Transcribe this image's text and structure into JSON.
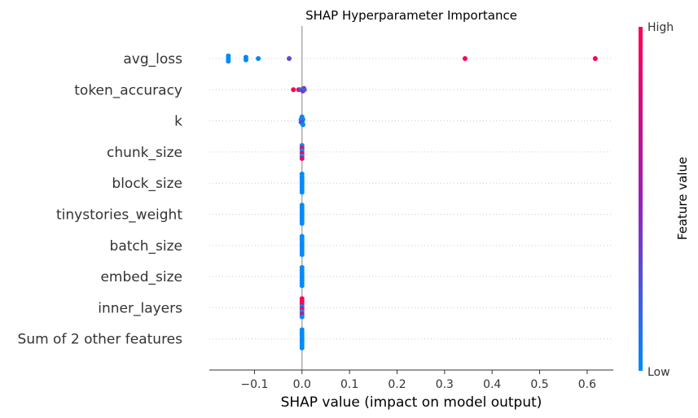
{
  "chart_data": {
    "type": "scatter",
    "title": "SHAP Hyperparameter Importance",
    "xlabel": "SHAP value (impact on model output)",
    "xlim": [
      -0.195,
      0.655
    ],
    "x_ticks": [
      -0.1,
      0.0,
      0.1,
      0.2,
      0.3,
      0.4,
      0.5,
      0.6
    ],
    "x_tick_labels": [
      "−0.1",
      "0.0",
      "0.1",
      "0.2",
      "0.3",
      "0.4",
      "0.5",
      "0.6"
    ],
    "grid": false,
    "colorbar": {
      "title": "Feature value",
      "high_label": "High",
      "low_label": "Low",
      "low_color": "#008bfb",
      "mid_color": "#9b1fba",
      "high_color": "#ff0052"
    },
    "features": [
      {
        "name": "avg_loss",
        "points": [
          {
            "shap": -0.155,
            "value": 0.0
          },
          {
            "shap": -0.155,
            "value": 0.0
          },
          {
            "shap": -0.155,
            "value": 0.0
          },
          {
            "shap": -0.118,
            "value": 0.02
          },
          {
            "shap": -0.118,
            "value": 0.02
          },
          {
            "shap": -0.092,
            "value": 0.04
          },
          {
            "shap": -0.027,
            "value": 0.3
          },
          {
            "shap": 0.343,
            "value": 1.0
          },
          {
            "shap": 0.617,
            "value": 1.0
          }
        ]
      },
      {
        "name": "token_accuracy",
        "points": [
          {
            "shap": 0.004,
            "value": 0.55
          },
          {
            "shap": -0.018,
            "value": 1.0
          },
          {
            "shap": -0.007,
            "value": 0.8
          },
          {
            "shap": -0.002,
            "value": 0.1
          },
          {
            "shap": 0.002,
            "value": 0.5
          },
          {
            "shap": 0.005,
            "value": 0.2
          }
        ]
      },
      {
        "name": "k",
        "points": [
          {
            "shap": -0.002,
            "value": 0.0
          },
          {
            "shap": 0.0,
            "value": 0.05
          },
          {
            "shap": 0.002,
            "value": 0.0
          },
          {
            "shap": -0.002,
            "value": 0.1
          },
          {
            "shap": 0.0,
            "value": 0.3
          },
          {
            "shap": 0.002,
            "value": 0.0
          }
        ]
      },
      {
        "name": "chunk_size",
        "points": [
          {
            "shap": 0.0,
            "value": 0.0
          },
          {
            "shap": 0.0,
            "value": 1.0
          },
          {
            "shap": 0.0,
            "value": 0.0
          },
          {
            "shap": 0.0,
            "value": 1.0
          },
          {
            "shap": 0.0,
            "value": 0.0
          },
          {
            "shap": 0.0,
            "value": 0.9
          }
        ]
      },
      {
        "name": "block_size",
        "points": [
          {
            "shap": 0.0,
            "value": 0.0
          },
          {
            "shap": 0.0,
            "value": 0.0
          },
          {
            "shap": 0.0,
            "value": 0.0
          },
          {
            "shap": 0.0,
            "value": 0.0
          },
          {
            "shap": 0.0,
            "value": 0.0
          },
          {
            "shap": 0.0,
            "value": 0.0
          },
          {
            "shap": 0.0,
            "value": 0.0
          },
          {
            "shap": 0.0,
            "value": 0.0
          }
        ]
      },
      {
        "name": "tinystories_weight",
        "points": [
          {
            "shap": 0.0,
            "value": 0.0
          },
          {
            "shap": 0.0,
            "value": 0.0
          },
          {
            "shap": 0.0,
            "value": 0.0
          },
          {
            "shap": 0.0,
            "value": 0.0
          },
          {
            "shap": 0.0,
            "value": 0.0
          },
          {
            "shap": 0.0,
            "value": 0.0
          },
          {
            "shap": 0.0,
            "value": 0.0
          },
          {
            "shap": 0.0,
            "value": 0.0
          }
        ]
      },
      {
        "name": "batch_size",
        "points": [
          {
            "shap": 0.0,
            "value": 0.0
          },
          {
            "shap": 0.0,
            "value": 0.0
          },
          {
            "shap": 0.0,
            "value": 0.0
          },
          {
            "shap": 0.0,
            "value": 0.0
          },
          {
            "shap": 0.0,
            "value": 0.0
          },
          {
            "shap": 0.0,
            "value": 0.0
          },
          {
            "shap": 0.0,
            "value": 0.0
          },
          {
            "shap": 0.0,
            "value": 0.0
          }
        ]
      },
      {
        "name": "embed_size",
        "points": [
          {
            "shap": 0.0,
            "value": 0.0
          },
          {
            "shap": 0.0,
            "value": 0.0
          },
          {
            "shap": 0.0,
            "value": 0.0
          },
          {
            "shap": 0.0,
            "value": 0.0
          },
          {
            "shap": 0.0,
            "value": 0.0
          },
          {
            "shap": 0.0,
            "value": 0.0
          },
          {
            "shap": 0.0,
            "value": 0.0
          },
          {
            "shap": 0.0,
            "value": 0.0
          }
        ]
      },
      {
        "name": "inner_layers",
        "points": [
          {
            "shap": 0.0,
            "value": 1.0
          },
          {
            "shap": 0.0,
            "value": 1.0
          },
          {
            "shap": 0.0,
            "value": 0.9
          },
          {
            "shap": 0.0,
            "value": 0.1
          },
          {
            "shap": 0.0,
            "value": 1.0
          },
          {
            "shap": 0.0,
            "value": 0.0
          },
          {
            "shap": 0.0,
            "value": 0.8
          },
          {
            "shap": 0.0,
            "value": 0.0
          }
        ]
      },
      {
        "name": "Sum of 2 other features",
        "points": [
          {
            "shap": 0.0,
            "value": 0.0
          },
          {
            "shap": 0.0,
            "value": 0.0
          },
          {
            "shap": 0.0,
            "value": 0.0
          },
          {
            "shap": 0.0,
            "value": 0.0
          },
          {
            "shap": 0.0,
            "value": 0.0
          },
          {
            "shap": 0.0,
            "value": 0.0
          },
          {
            "shap": 0.0,
            "value": 0.0
          },
          {
            "shap": 0.0,
            "value": 0.0
          }
        ]
      }
    ]
  }
}
